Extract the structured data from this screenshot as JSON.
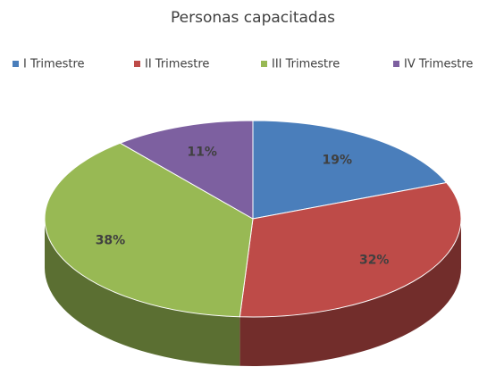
{
  "chart_data": {
    "type": "pie",
    "title": "Personas capacitadas",
    "categories": [
      "I Trimestre",
      "II Trimestre",
      "III Trimestre",
      "IV Trimestre"
    ],
    "values": [
      19,
      32,
      38,
      11
    ],
    "value_labels": [
      "19%",
      "32%",
      "38%",
      "11%"
    ],
    "colors": [
      "#4a7ebb",
      "#be4b48",
      "#98b954",
      "#7d60a0"
    ],
    "legend": "top"
  }
}
